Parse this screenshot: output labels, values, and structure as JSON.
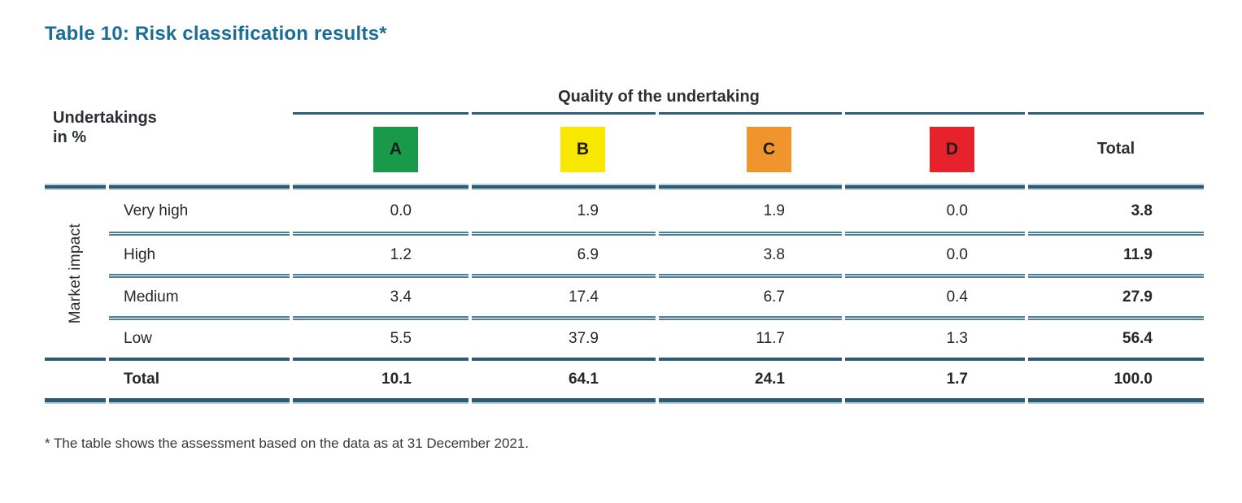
{
  "title": "Table 10: Risk classification results*",
  "table": {
    "corner_header": "Undertakings\nin %",
    "quality_header": "Quality of the undertaking",
    "row_axis_label": "Market impact",
    "total_col_label": "Total",
    "categories": [
      {
        "label": "A",
        "color": "#189a4a"
      },
      {
        "label": "B",
        "color": "#f8e800"
      },
      {
        "label": "C",
        "color": "#f0942e"
      },
      {
        "label": "D",
        "color": "#e8222d"
      }
    ],
    "rows": [
      {
        "label": "Very high",
        "values": [
          "0.0",
          "1.9",
          "1.9",
          "0.0"
        ],
        "total": "3.8"
      },
      {
        "label": "High",
        "values": [
          "1.2",
          "6.9",
          "3.8",
          "0.0"
        ],
        "total": "11.9"
      },
      {
        "label": "Medium",
        "values": [
          "3.4",
          "17.4",
          "6.7",
          "0.4"
        ],
        "total": "27.9"
      },
      {
        "label": "Low",
        "values": [
          "5.5",
          "37.9",
          "11.7",
          "1.3"
        ],
        "total": "56.4"
      }
    ],
    "total_row": {
      "label": "Total",
      "values": [
        "10.1",
        "64.1",
        "24.1",
        "1.7"
      ],
      "total": "100.0"
    }
  },
  "footnote": "* The table shows the assessment based on the data as at 31 December 2021.",
  "colors": {
    "title_blue": "#1b6d96",
    "rule_dark": "#2e5a72",
    "rule_light": "#b5cbd9",
    "rule_separator": "#4d7f9c",
    "text": "#262626"
  },
  "chart_data": {
    "type": "table",
    "title": "Table 10: Risk classification results*",
    "column_group_label": "Quality of the undertaking",
    "columns": [
      "A",
      "B",
      "C",
      "D",
      "Total"
    ],
    "row_group_label": "Market impact",
    "unit_label": "Undertakings in %",
    "rows": [
      {
        "label": "Very high",
        "values": [
          0.0,
          1.9,
          1.9,
          0.0,
          3.8
        ]
      },
      {
        "label": "High",
        "values": [
          1.2,
          6.9,
          3.8,
          0.0,
          11.9
        ]
      },
      {
        "label": "Medium",
        "values": [
          3.4,
          17.4,
          6.7,
          0.4,
          27.9
        ]
      },
      {
        "label": "Low",
        "values": [
          5.5,
          37.9,
          11.7,
          1.3,
          56.4
        ]
      },
      {
        "label": "Total",
        "values": [
          10.1,
          64.1,
          24.1,
          1.7,
          100.0
        ]
      }
    ]
  }
}
